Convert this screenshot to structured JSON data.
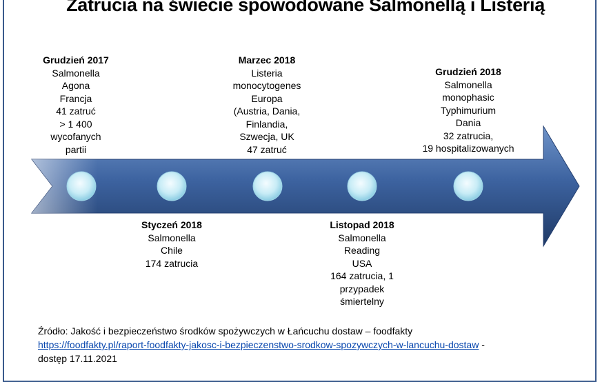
{
  "title": "Zatrucia na świecie spowodowane Salmonellą i Listerią",
  "events": [
    {
      "date": "Grudzień 2017",
      "lines": [
        "Salmonella",
        "Agona",
        "Francja",
        "41 zatruć",
        "> 1 400",
        "wycofanych",
        "partii"
      ]
    },
    {
      "date": "Styczeń 2018",
      "lines": [
        "Salmonella",
        "Chile",
        "174 zatrucia"
      ]
    },
    {
      "date": "Marzec 2018",
      "lines": [
        "Listeria",
        "monocytogenes",
        "Europa",
        "(Austria, Dania,",
        "Finlandia,",
        "Szwecja, UK",
        "47 zatruć"
      ]
    },
    {
      "date": "Listopad 2018",
      "lines": [
        "Salmonella",
        "Reading",
        "USA",
        "164 zatrucia, 1",
        "przypadek",
        "śmiertelny"
      ]
    },
    {
      "date": "Grudzień 2018",
      "lines": [
        "Salmonella",
        "monophasic",
        "Typhimurium",
        "Dania",
        "32 zatrucia,",
        "19 hospitalizowanych"
      ]
    }
  ],
  "source": {
    "prefix": "Źródło: Jakość i bezpieczeństwo środków spożywczych w Łańcuchu dostaw – foodfakty",
    "link": "https://foodfakty.pl/raport-foodfakty-jakosc-i-bezpieczenstwo-srodkow-spozywczych-w-lancuchu-dostaw",
    "link_suffix": " -",
    "accessed": "dostęp 17.11.2021"
  },
  "colors": {
    "arrow_dark": "#1f3a66",
    "arrow_light": "#5a7fb8",
    "circle_light": "#e6f6fb",
    "circle_dark": "#8fd0e6",
    "frame": "#3a5a8c"
  }
}
